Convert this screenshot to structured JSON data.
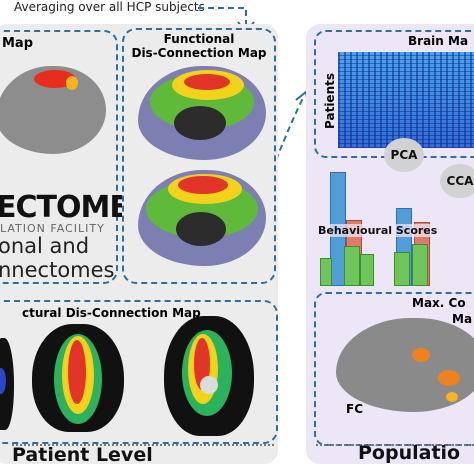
{
  "header": {
    "averaging_label": "Averaging over all HCP subjects"
  },
  "patient_level": {
    "label": "Patient Level",
    "lesion_panel": {
      "title_fragment": "Map"
    },
    "connectome": {
      "logo_main": "ECTOME",
      "logo_sub": "LATION FACILITY",
      "line1": "onal and",
      "line2": "nnectomes"
    },
    "functional_map": {
      "title_line1": "Functional",
      "title_line2": "Dis-Connection Map"
    },
    "structural_map": {
      "title": "ctural Dis-Connection Map"
    }
  },
  "population_level": {
    "label": "Populatio",
    "brain_map": {
      "title": "Brain Ma",
      "y_axis": "Patients"
    },
    "pca_label": "PCA",
    "cca_label": "CCA",
    "behavioural": {
      "title": "Behavioural Scores"
    },
    "max_panel": {
      "title_line1": "Max. Co",
      "title_line2": "Ma",
      "fc_label": "FC"
    }
  },
  "colors": {
    "panel_gray": "#ececec",
    "panel_purple": "#ece6f6",
    "dashed_arrow": "#2f6f9f",
    "bar_blue": "#4f9dd9",
    "bar_red": "#e07b6b",
    "bar_green": "#6fc45a"
  }
}
